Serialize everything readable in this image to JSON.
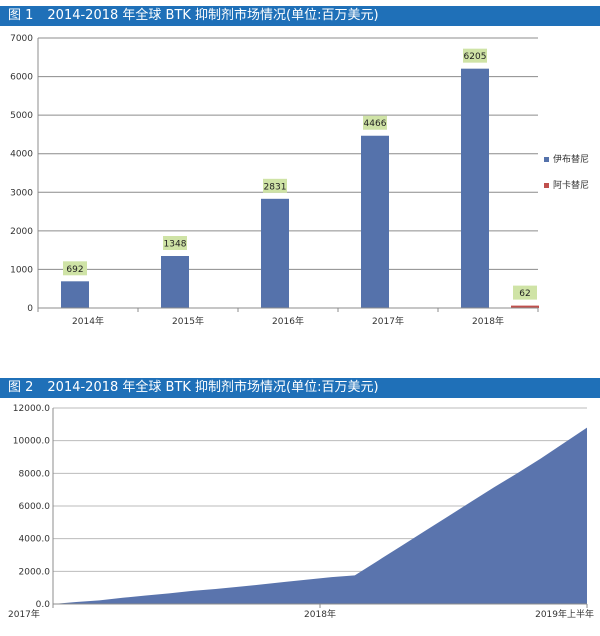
{
  "figure1": {
    "number": "图 1",
    "title": "2014-2018 年全球 BTK 抑制剂市场情况(单位:百万美元)"
  },
  "figure2": {
    "number": "图 2",
    "title": "2014-2018 年全球 BTK 抑制剂市场情况(单位:百万美元)"
  },
  "colors": {
    "header_bg": "#1f70b8",
    "ibrutinib": "#5572ab",
    "acalabrutinib": "#c0504d",
    "data_label_bg": "#cfe3a6",
    "area": "#5a74ad"
  },
  "chart_data": [
    {
      "type": "bar",
      "categories": [
        "2014年",
        "2015年",
        "2016年",
        "2017年",
        "2018年"
      ],
      "series": [
        {
          "name": "伊布替尼",
          "values": [
            692,
            1348,
            2831,
            4466,
            6205
          ],
          "labels": [
            "692",
            "1348",
            "2831",
            "4466",
            "6205"
          ]
        },
        {
          "name": "阿卡替尼",
          "values": [
            null,
            null,
            null,
            null,
            62
          ],
          "labels": [
            "",
            "",
            "",
            "",
            "62"
          ]
        }
      ],
      "ylim": [
        0,
        7000
      ],
      "yticks": [
        "0",
        "1000",
        "2000",
        "3000",
        "4000",
        "5000",
        "6000",
        "7000"
      ],
      "grid": true,
      "legend_position": "right"
    },
    {
      "type": "area",
      "x_tick_labels": [
        "2017年",
        "2018年",
        "2019年上半年"
      ],
      "values": [
        0,
        120,
        220,
        380,
        520,
        650,
        800,
        920,
        1050,
        1200,
        1350,
        1500,
        1650,
        1750,
        2650,
        3550,
        4450,
        5350,
        6250,
        7150,
        8000,
        8900,
        9850,
        10800
      ],
      "ylim": [
        0,
        12000
      ],
      "yticks": [
        "0.0",
        "2000.0",
        "4000.0",
        "6000.0",
        "8000.0",
        "10000.0",
        "12000.0"
      ],
      "grid": true
    }
  ]
}
